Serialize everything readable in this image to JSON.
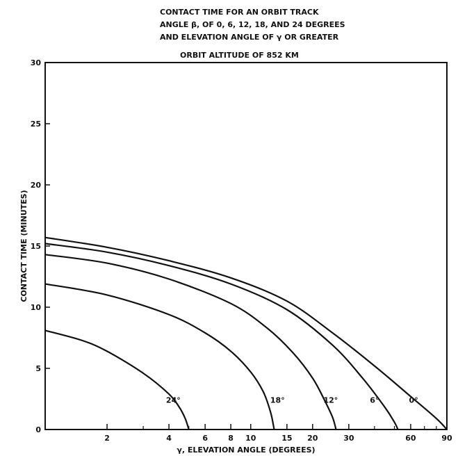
{
  "chart_data": {
    "type": "line",
    "title_lines": [
      "CONTACT TIME FOR AN ORBIT TRACK",
      "ANGLE β, OF 0, 6, 12, 18, AND 24 DEGREES",
      "AND ELEVATION ANGLE OF γ OR GREATER"
    ],
    "subtitle": "ORBIT ALTITUDE OF 852 KM",
    "xlabel": "γ, ELEVATION ANGLE (DEGREES)",
    "ylabel": "CONTACT TIME (MINUTES)",
    "x_scale": "log",
    "xlim": [
      1,
      90
    ],
    "ylim": [
      0,
      30
    ],
    "x_tick_labels": [
      "2",
      "4",
      "6",
      "8",
      "10",
      "15",
      "20",
      "30",
      "60",
      "90"
    ],
    "x_ticks": [
      2,
      4,
      6,
      8,
      10,
      15,
      20,
      30,
      60,
      90
    ],
    "x_minor_ticks": [
      3,
      5,
      40,
      50,
      70,
      80
    ],
    "y_tick_labels": [
      "0",
      "5",
      "10",
      "15",
      "20",
      "25",
      "30"
    ],
    "y_ticks": [
      0,
      5,
      10,
      15,
      20,
      25,
      30
    ],
    "grid": false,
    "series": [
      {
        "name": "0°",
        "x": [
          1,
          2,
          4,
          8,
          15,
          25,
          40,
          60,
          80,
          90
        ],
        "y": [
          15.7,
          14.9,
          13.8,
          12.4,
          10.5,
          7.9,
          5.2,
          2.7,
          0.9,
          0
        ]
      },
      {
        "name": "6°",
        "x": [
          1,
          2,
          4,
          8,
          15,
          25,
          35,
          45,
          50,
          52
        ],
        "y": [
          15.2,
          14.5,
          13.4,
          11.9,
          9.8,
          6.9,
          4.2,
          1.8,
          0.6,
          0
        ]
      },
      {
        "name": "12°",
        "x": [
          1,
          2,
          4,
          8,
          12,
          16,
          20,
          23,
          25,
          26
        ],
        "y": [
          14.3,
          13.6,
          12.3,
          10.3,
          8.3,
          6.3,
          4.2,
          2.3,
          1.0,
          0
        ]
      },
      {
        "name": "18°",
        "x": [
          1,
          2,
          4,
          6,
          8,
          10,
          11.5,
          12.5,
          13
        ],
        "y": [
          11.9,
          11.0,
          9.4,
          7.9,
          6.4,
          4.7,
          3.1,
          1.4,
          0
        ]
      },
      {
        "name": "24°",
        "x": [
          1,
          1.5,
          2,
          3,
          4,
          4.5,
          4.8,
          5
        ],
        "y": [
          8.1,
          7.3,
          6.4,
          4.6,
          2.9,
          1.8,
          0.9,
          0
        ]
      }
    ],
    "curve_labels": [
      {
        "series": "24°",
        "text": "24°",
        "x": 4.2,
        "y": 2.2
      },
      {
        "series": "18°",
        "text": "18°",
        "x": 13.5,
        "y": 2.2
      },
      {
        "series": "12°",
        "text": "12°",
        "x": 24.5,
        "y": 2.2
      },
      {
        "series": "6°",
        "text": "6°",
        "x": 40,
        "y": 2.2
      },
      {
        "series": "0°",
        "text": "0°",
        "x": 62,
        "y": 2.2
      }
    ]
  }
}
